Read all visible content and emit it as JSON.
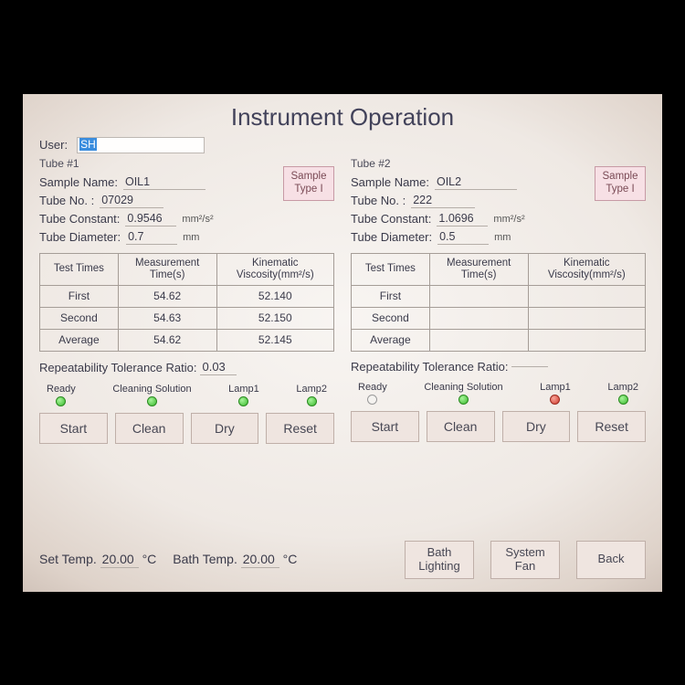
{
  "title": "Instrument Operation",
  "user": {
    "label": "User:",
    "value": "SH"
  },
  "tubes": [
    {
      "title": "Tube #1",
      "sample_name_label": "Sample Name:",
      "sample_name": "OIL1",
      "tube_no_label": "Tube No. :",
      "tube_no": "07029",
      "tube_constant_label": "Tube Constant:",
      "tube_constant": "0.9546",
      "tube_constant_unit": "mm²/s²",
      "tube_diameter_label": "Tube Diameter:",
      "tube_diameter": "0.7",
      "tube_diameter_unit": "mm",
      "sample_type_btn": "Sample\nType I",
      "columns": [
        "Test Times",
        "Measurement\nTime(s)",
        "Kinematic\nViscosity(mm²/s)"
      ],
      "rows": [
        {
          "label": "First",
          "time": "54.62",
          "visc": "52.140"
        },
        {
          "label": "Second",
          "time": "54.63",
          "visc": "52.150"
        },
        {
          "label": "Average",
          "time": "54.62",
          "visc": "52.145"
        }
      ],
      "rtr_label": "Repeatability Tolerance Ratio:",
      "rtr_value": "0.03",
      "leds": [
        {
          "label": "Ready",
          "state": "green"
        },
        {
          "label": "Cleaning Solution",
          "state": "green"
        },
        {
          "label": "Lamp1",
          "state": "green"
        },
        {
          "label": "Lamp2",
          "state": "green"
        }
      ],
      "buttons": [
        "Start",
        "Clean",
        "Dry",
        "Reset"
      ]
    },
    {
      "title": "Tube #2",
      "sample_name_label": "Sample Name:",
      "sample_name": "OIL2",
      "tube_no_label": "Tube No. :",
      "tube_no": "222",
      "tube_constant_label": "Tube Constant:",
      "tube_constant": "1.0696",
      "tube_constant_unit": "mm²/s²",
      "tube_diameter_label": "Tube Diameter:",
      "tube_diameter": "0.5",
      "tube_diameter_unit": "mm",
      "sample_type_btn": "Sample\nType I",
      "columns": [
        "Test Times",
        "Measurement\nTime(s)",
        "Kinematic\nViscosity(mm²/s)"
      ],
      "rows": [
        {
          "label": "First",
          "time": "",
          "visc": ""
        },
        {
          "label": "Second",
          "time": "",
          "visc": ""
        },
        {
          "label": "Average",
          "time": "",
          "visc": ""
        }
      ],
      "rtr_label": "Repeatability Tolerance Ratio:",
      "rtr_value": "",
      "leds": [
        {
          "label": "Ready",
          "state": "off"
        },
        {
          "label": "Cleaning Solution",
          "state": "green"
        },
        {
          "label": "Lamp1",
          "state": "red"
        },
        {
          "label": "Lamp2",
          "state": "green"
        }
      ],
      "buttons": [
        "Start",
        "Clean",
        "Dry",
        "Reset"
      ]
    }
  ],
  "bottom": {
    "set_temp_label": "Set Temp.",
    "set_temp_value": "20.00",
    "set_temp_unit": "°C",
    "bath_temp_label": "Bath Temp.",
    "bath_temp_value": "20.00",
    "bath_temp_unit": "°C",
    "buttons": [
      "Bath\nLighting",
      "System\nFan",
      "Back"
    ]
  },
  "colors": {
    "led_green": "#39b82c",
    "led_red": "#d13a2c",
    "sample_btn_bg": "#f7e0e5",
    "btn_bg": "#efe5e0"
  }
}
